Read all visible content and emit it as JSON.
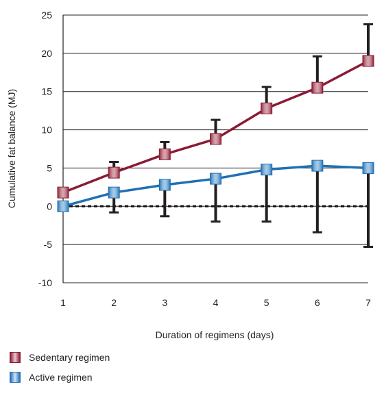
{
  "chart_data": {
    "type": "line",
    "title": "",
    "xlabel": "Duration of regimens (days)",
    "ylabel": "Cumulative fat balance (MJ)",
    "x": [
      1,
      2,
      3,
      4,
      5,
      6,
      7
    ],
    "ylim": [
      -10,
      25
    ],
    "yticks": [
      -10,
      -5,
      0,
      5,
      10,
      15,
      20,
      25
    ],
    "grid": true,
    "legend_position": "bottom-left",
    "series": [
      {
        "name": "Sedentary regimen",
        "color": "#8b1a33",
        "marker_color": "#a8384e",
        "values": [
          1.8,
          4.4,
          6.8,
          8.8,
          12.8,
          15.5,
          19.0
        ],
        "error_upper": [
          1.8,
          5.8,
          8.4,
          11.3,
          15.6,
          19.6,
          23.8
        ],
        "error_lower": [
          1.8,
          4.4,
          6.8,
          8.8,
          12.8,
          15.5,
          19.0
        ]
      },
      {
        "name": "Active regimen",
        "color": "#1f6fb4",
        "marker_color": "#3a8ac8",
        "values": [
          0.0,
          1.8,
          2.8,
          3.6,
          4.8,
          5.3,
          5.0
        ],
        "error_upper": [
          0.0,
          1.8,
          2.8,
          3.6,
          4.8,
          5.3,
          5.0
        ],
        "error_lower": [
          0.0,
          -0.8,
          -1.3,
          -2.0,
          -2.0,
          -3.4,
          -5.3
        ]
      }
    ],
    "reference_line": {
      "y": 0,
      "style": "dotted"
    }
  }
}
